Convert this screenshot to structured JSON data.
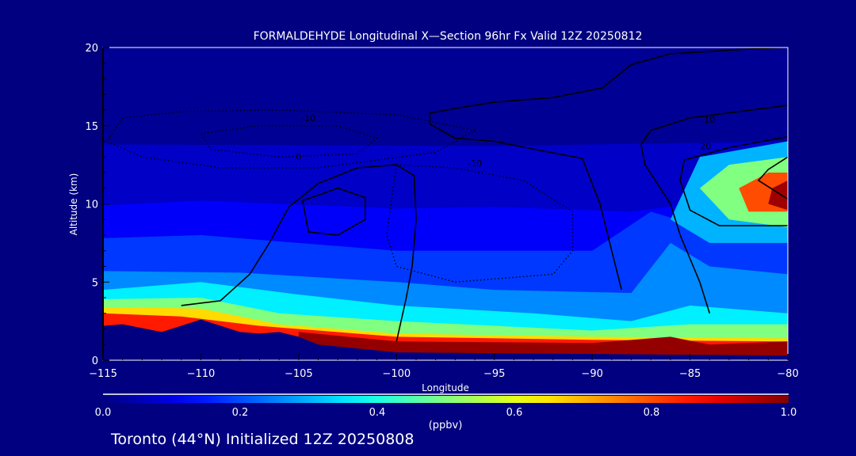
{
  "chart_data": {
    "type": "heatmap",
    "title": "FORMALDEHYDE Longitudinal X—Section 96hr  Fx Valid 12Z 20250812",
    "xlabel": "Longitude",
    "ylabel": "Altitude (km)",
    "xlim": [
      -115,
      -80
    ],
    "ylim": [
      0,
      20
    ],
    "xticks": [
      -115,
      -110,
      -105,
      -100,
      -95,
      -90,
      -85,
      -80
    ],
    "xtick_labels": [
      "−115",
      "−110",
      "−105",
      "−100",
      "−95",
      "−90",
      "−85",
      "−80"
    ],
    "yticks": [
      0,
      5,
      10,
      15,
      20
    ],
    "ytick_labels": [
      "0",
      "5",
      "10",
      "15",
      "20"
    ],
    "colorbar": {
      "range": [
        0.0,
        1.0
      ],
      "ticks": [
        0.0,
        0.2,
        0.4,
        0.6,
        0.8,
        1.0
      ],
      "tick_labels": [
        "0.0",
        "0.2",
        "0.4",
        "0.6",
        "0.8",
        "1.0"
      ],
      "units": "(ppbv)",
      "colormap": "jet"
    },
    "filled_regions": [
      {
        "value": 0.02,
        "poly": [
          [
            -115,
            0
          ],
          [
            -115,
            20
          ],
          [
            -80,
            20
          ],
          [
            -80,
            0
          ]
        ]
      },
      {
        "value": 0.07,
        "poly": [
          [
            -115,
            0
          ],
          [
            -115,
            13.8
          ],
          [
            -95,
            13.7
          ],
          [
            -85,
            13.9
          ],
          [
            -80,
            14
          ],
          [
            -80,
            0
          ]
        ]
      },
      {
        "value": 0.12,
        "poly": [
          [
            -115,
            0
          ],
          [
            -115,
            9.9
          ],
          [
            -110,
            10.2
          ],
          [
            -100,
            9.7
          ],
          [
            -95,
            9.8
          ],
          [
            -88,
            9.5
          ],
          [
            -85,
            10
          ],
          [
            -80,
            10
          ],
          [
            -80,
            0
          ]
        ]
      },
      {
        "value": 0.18,
        "poly": [
          [
            -115,
            0
          ],
          [
            -115,
            7.8
          ],
          [
            -110,
            8
          ],
          [
            -100,
            7
          ],
          [
            -90,
            7
          ],
          [
            -87,
            9.5
          ],
          [
            -83,
            8
          ],
          [
            -80,
            7.5
          ],
          [
            -80,
            0
          ]
        ]
      },
      {
        "value": 0.26,
        "poly": [
          [
            -115,
            0
          ],
          [
            -115,
            5.7
          ],
          [
            -108,
            5.6
          ],
          [
            -100,
            5
          ],
          [
            -95,
            4.5
          ],
          [
            -88,
            4.3
          ],
          [
            -86,
            7.5
          ],
          [
            -84,
            6
          ],
          [
            -80,
            5.5
          ],
          [
            -80,
            0
          ]
        ]
      },
      {
        "value": 0.36,
        "poly": [
          [
            -115,
            0
          ],
          [
            -115,
            4.5
          ],
          [
            -110,
            5
          ],
          [
            -105,
            4.2
          ],
          [
            -100,
            3.5
          ],
          [
            -93,
            3
          ],
          [
            -88,
            2.5
          ],
          [
            -85,
            3.5
          ],
          [
            -80,
            3
          ],
          [
            -80,
            0
          ]
        ]
      },
      {
        "value": 0.5,
        "poly": [
          [
            -115,
            0
          ],
          [
            -115,
            3.9
          ],
          [
            -110,
            4
          ],
          [
            -106,
            3
          ],
          [
            -100,
            2.5
          ],
          [
            -90,
            1.9
          ],
          [
            -85,
            2.3
          ],
          [
            -80,
            2.3
          ],
          [
            -80,
            0
          ]
        ]
      },
      {
        "value": 0.66,
        "poly": [
          [
            -115,
            0
          ],
          [
            -115,
            3.4
          ],
          [
            -110,
            3.3
          ],
          [
            -106,
            2.3
          ],
          [
            -100,
            1.7
          ],
          [
            -90,
            1.5
          ],
          [
            -80,
            1.4
          ],
          [
            -80,
            0
          ]
        ]
      },
      {
        "value": 0.85,
        "poly": [
          [
            -115,
            0
          ],
          [
            -115,
            3
          ],
          [
            -111,
            2.8
          ],
          [
            -107,
            2.2
          ],
          [
            -104,
            1.9
          ],
          [
            -100,
            1.5
          ],
          [
            -90,
            1.3
          ],
          [
            -80,
            1.2
          ],
          [
            -80,
            0
          ]
        ]
      },
      {
        "value": 0.98,
        "poly": [
          [
            -105,
            1.8
          ],
          [
            -100,
            1.2
          ],
          [
            -90,
            1.1
          ],
          [
            -86,
            1.5
          ],
          [
            -84,
            1
          ],
          [
            -80,
            1.2
          ],
          [
            -80,
            0.2
          ],
          [
            -105,
            0.2
          ]
        ]
      },
      {
        "value": 0.3,
        "poly": [
          [
            -86,
            9
          ],
          [
            -84.5,
            13
          ],
          [
            -80,
            14
          ],
          [
            -80,
            7.5
          ],
          [
            -84,
            7.5
          ]
        ]
      },
      {
        "value": 0.5,
        "poly": [
          [
            -84.5,
            11
          ],
          [
            -83,
            12.5
          ],
          [
            -80,
            13
          ],
          [
            -80,
            8.5
          ],
          [
            -83,
            9
          ]
        ]
      },
      {
        "value": 0.8,
        "poly": [
          [
            -82.5,
            11
          ],
          [
            -81,
            12
          ],
          [
            -80,
            12
          ],
          [
            -80,
            9.5
          ],
          [
            -82,
            9.5
          ]
        ]
      },
      {
        "value": 0.97,
        "poly": [
          [
            -80.8,
            11
          ],
          [
            -80,
            11.5
          ],
          [
            -80,
            9.6
          ],
          [
            -81,
            10
          ]
        ]
      }
    ],
    "terrain": [
      [
        -115,
        0
      ],
      [
        -115,
        2.2
      ],
      [
        -114,
        2.3
      ],
      [
        -112,
        1.8
      ],
      [
        -110,
        2.6
      ],
      [
        -108,
        1.8
      ],
      [
        -107,
        1.7
      ],
      [
        -106,
        1.8
      ],
      [
        -105,
        1.5
      ],
      [
        -104,
        1.0
      ],
      [
        -100,
        0.5
      ],
      [
        -90,
        0.4
      ],
      [
        -80,
        0.3
      ],
      [
        -80,
        0
      ]
    ],
    "contours": [
      {
        "label": "-10",
        "dashed": true,
        "label_at": [
          -104.5,
          15.3
        ],
        "pts": [
          [
            -114,
            15.5
          ],
          [
            -111,
            15.9
          ],
          [
            -106,
            16
          ],
          [
            -100,
            15.7
          ],
          [
            -96,
            14.7
          ],
          [
            -98,
            13.3
          ],
          [
            -104,
            12.3
          ],
          [
            -109,
            12.3
          ],
          [
            -113,
            13
          ],
          [
            -114.8,
            14
          ],
          [
            -114,
            15.5
          ]
        ]
      },
      {
        "label": "",
        "dashed": true,
        "label_at": null,
        "pts": [
          [
            -110,
            14.5
          ],
          [
            -107,
            15
          ],
          [
            -103,
            15
          ],
          [
            -101,
            14.2
          ],
          [
            -102,
            13.2
          ],
          [
            -106,
            13
          ],
          [
            -109.5,
            13.5
          ],
          [
            -110,
            14.5
          ]
        ]
      },
      {
        "label": "-10",
        "dashed": true,
        "label_at": [
          -96,
          12.4
        ],
        "pts": [
          [
            -100,
            12.5
          ],
          [
            -97,
            12.3
          ],
          [
            -93.5,
            11.5
          ],
          [
            -91,
            9.5
          ],
          [
            -91,
            7
          ],
          [
            -92,
            5.5
          ],
          [
            -97,
            5
          ],
          [
            -100,
            6
          ],
          [
            -100.5,
            8
          ],
          [
            -100,
            12.5
          ]
        ]
      },
      {
        "label": "0",
        "dashed": false,
        "label_at": [
          -105,
          12.8
        ],
        "pts": [
          [
            -111,
            3.5
          ],
          [
            -109,
            3.8
          ],
          [
            -107.5,
            5.5
          ],
          [
            -106.5,
            7.5
          ],
          [
            -105.5,
            9.8
          ],
          [
            -104,
            11.3
          ],
          [
            -102,
            12.3
          ],
          [
            -100,
            12.5
          ],
          [
            -99.1,
            11.8
          ],
          [
            -99,
            9
          ],
          [
            -99.2,
            6
          ],
          [
            -99.5,
            4
          ],
          [
            -100,
            1.2
          ]
        ]
      },
      {
        "label": "",
        "dashed": false,
        "label_at": null,
        "pts": [
          [
            -104.8,
            10.2
          ],
          [
            -103,
            11
          ],
          [
            -101.6,
            10.4
          ],
          [
            -101.6,
            9
          ],
          [
            -103,
            8
          ],
          [
            -104.5,
            8.2
          ],
          [
            -104.8,
            10.2
          ]
        ]
      },
      {
        "label": "0",
        "dashed": false,
        "label_at": [
          -82.5,
          19.8
        ],
        "pts": [
          [
            -80,
            20
          ],
          [
            -82,
            19.9
          ],
          [
            -86,
            19.6
          ],
          [
            -88,
            18.9
          ],
          [
            -89.5,
            17.4
          ],
          [
            -92,
            16.8
          ],
          [
            -95,
            16.5
          ],
          [
            -97,
            16.1
          ],
          [
            -98.3,
            15.8
          ],
          [
            -98.3,
            15.1
          ],
          [
            -97,
            14.2
          ],
          [
            -95,
            14
          ],
          [
            -93,
            13.5
          ],
          [
            -90.5,
            12.9
          ],
          [
            -89.6,
            10
          ],
          [
            -89,
            7
          ],
          [
            -88.5,
            4.5
          ]
        ]
      },
      {
        "label": "10",
        "dashed": false,
        "label_at": [
          -84,
          15.2
        ],
        "pts": [
          [
            -80,
            16.3
          ],
          [
            -85,
            15.5
          ],
          [
            -87,
            14.7
          ],
          [
            -87.5,
            13.8
          ],
          [
            -87.3,
            12.5
          ],
          [
            -86,
            10
          ],
          [
            -85.5,
            8
          ],
          [
            -84.5,
            5
          ],
          [
            -84,
            3
          ]
        ]
      },
      {
        "label": "20",
        "dashed": false,
        "label_at": [
          -84.2,
          13.5
        ],
        "pts": [
          [
            -80,
            14.3
          ],
          [
            -83,
            13.6
          ],
          [
            -85.3,
            12.8
          ],
          [
            -85.5,
            11.5
          ],
          [
            -85,
            9.6
          ],
          [
            -83.5,
            8.6
          ],
          [
            -80,
            8.6
          ]
        ]
      },
      {
        "label": "",
        "dashed": false,
        "label_at": null,
        "pts": [
          [
            -80,
            13
          ],
          [
            -81,
            12.2
          ],
          [
            -81.5,
            11.5
          ],
          [
            -80,
            10.3
          ]
        ]
      }
    ]
  },
  "footer": {
    "station": "Toronto (44°N) Initialized 12Z 20250808"
  }
}
